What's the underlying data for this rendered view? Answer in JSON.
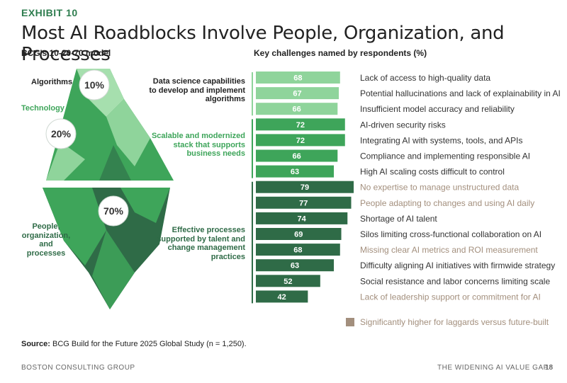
{
  "exhibit": "EXHIBIT 10",
  "title": "Most AI Roadblocks Involve People, Organization, and Processes",
  "left_subtitle": "BCG's 10-20-70 model",
  "right_subtitle": "Key challenges named by respondents (%)",
  "iceberg": {
    "algorithms_label": "Algorithms",
    "algorithms_pct": "10%",
    "technology_label": "Technology",
    "technology_pct": "20%",
    "people_label": "People,\norganization,\nand processes",
    "people_pct": "70%"
  },
  "groups": [
    {
      "label": "Data science capabilities to develop and implement algorithms"
    },
    {
      "label": "Scalable and modernized stack that supports business needs"
    },
    {
      "label": "Effective processes supported by talent and change management practices"
    }
  ],
  "colors": {
    "light": "#8fd49b",
    "medium": "#3ea55a",
    "dark": "#2f6b47",
    "highlight_text": "#a38f7d",
    "normal_text": "#333333",
    "bar_label": "#ffffff"
  },
  "chart_data": {
    "type": "bar",
    "orientation": "horizontal",
    "title": "Key challenges named by respondents (%)",
    "xlim": [
      0,
      100
    ],
    "categories": [
      "Lack of access to high-quality data",
      "Potential hallucinations and lack of explainability in AI",
      "Insufficient model accuracy and reliability",
      "AI-driven security risks",
      "Integrating AI with systems, tools, and APIs",
      "Compliance and implementing responsible AI",
      "High AI scaling costs difficult to control",
      "No expertise to manage unstructured data",
      "People adapting to changes and using AI daily",
      "Shortage of AI talent",
      "Silos limiting cross-functional collaboration on AI",
      "Missing clear AI metrics and ROI measurement",
      "Difficulty aligning AI initiatives with firmwide strategy",
      "Social resistance and labor concerns limiting scale",
      "Lack of leadership support or commitment for AI"
    ],
    "values": [
      68,
      67,
      66,
      72,
      72,
      66,
      63,
      79,
      77,
      74,
      69,
      68,
      63,
      52,
      42
    ],
    "group": [
      0,
      0,
      0,
      1,
      1,
      1,
      1,
      2,
      2,
      2,
      2,
      2,
      2,
      2,
      2
    ],
    "highlight": [
      false,
      false,
      false,
      false,
      false,
      false,
      false,
      true,
      true,
      false,
      false,
      true,
      false,
      false,
      true
    ],
    "legend": "Significantly higher for laggards versus future-built"
  },
  "source": {
    "label": "Source:",
    "text": "BCG Build for the Future 2025 Global Study (n = 1,250)."
  },
  "footer": {
    "left": "BOSTON CONSULTING GROUP",
    "right": "THE WIDENING AI VALUE GAP",
    "page": "18"
  }
}
